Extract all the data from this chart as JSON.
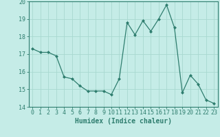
{
  "x": [
    0,
    1,
    2,
    3,
    4,
    5,
    6,
    7,
    8,
    9,
    10,
    11,
    12,
    13,
    14,
    15,
    16,
    17,
    18,
    19,
    20,
    21,
    22,
    23
  ],
  "y": [
    17.3,
    17.1,
    17.1,
    16.9,
    15.7,
    15.6,
    15.2,
    14.9,
    14.9,
    14.9,
    14.7,
    15.6,
    18.8,
    18.1,
    18.9,
    18.3,
    19.0,
    19.8,
    18.5,
    14.8,
    15.8,
    15.3,
    14.4,
    14.2
  ],
  "line_color": "#2e7d6e",
  "marker": "D",
  "marker_size": 2.0,
  "bg_color": "#c5ece7",
  "grid_color": "#a8d8d0",
  "xlabel": "Humidex (Indice chaleur)",
  "ylim": [
    14,
    20
  ],
  "xlim_min": -0.5,
  "xlim_max": 23.5,
  "yticks": [
    14,
    15,
    16,
    17,
    18,
    19,
    20
  ],
  "xticks": [
    0,
    1,
    2,
    3,
    4,
    5,
    6,
    7,
    8,
    9,
    10,
    11,
    12,
    13,
    14,
    15,
    16,
    17,
    18,
    19,
    20,
    21,
    22,
    23
  ],
  "axis_color": "#2e7d6e",
  "tick_color": "#2e7d6e",
  "label_fontsize": 7,
  "tick_fontsize": 6
}
